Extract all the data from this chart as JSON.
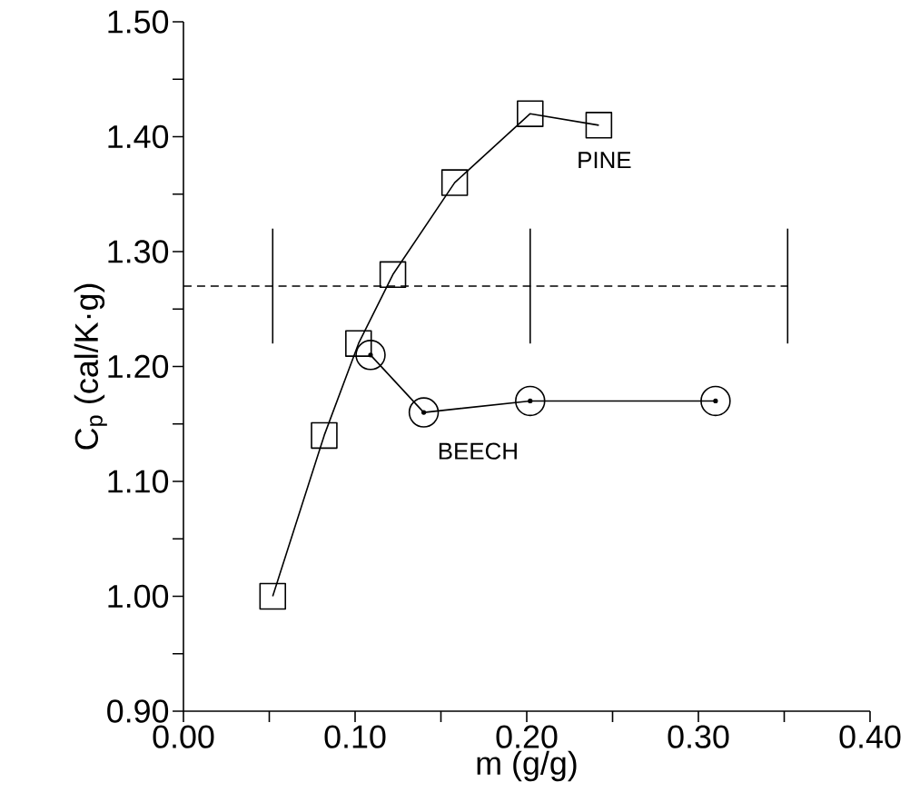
{
  "chart_data": {
    "type": "line",
    "xlabel": "m (g/g)",
    "ylabel": "C$_{p}$ (cal/K·g)",
    "xlim": [
      0,
      0.4
    ],
    "ylim": [
      0.9,
      1.5
    ],
    "xticks": [
      {
        "value": 0,
        "label": "0.00"
      },
      {
        "value": 0.05,
        "label": null
      },
      {
        "value": 0.1,
        "label": "0.10"
      },
      {
        "value": 0.15,
        "label": null
      },
      {
        "value": 0.2,
        "label": "0.20"
      },
      {
        "value": 0.25,
        "label": null
      },
      {
        "value": 0.3,
        "label": "0.30"
      },
      {
        "value": 0.35,
        "label": null
      },
      {
        "value": 0.4,
        "label": "0.40"
      }
    ],
    "yticks": [
      {
        "value": 0.9,
        "label": "0.90"
      },
      {
        "value": 0.95,
        "label": null
      },
      {
        "value": 1.0,
        "label": "1.00"
      },
      {
        "value": 1.05,
        "label": null
      },
      {
        "value": 1.1,
        "label": "1.10"
      },
      {
        "value": 1.15,
        "label": null
      },
      {
        "value": 1.2,
        "label": "1.20"
      },
      {
        "value": 1.25,
        "label": null
      },
      {
        "value": 1.3,
        "label": "1.30"
      },
      {
        "value": 1.35,
        "label": null
      },
      {
        "value": 1.4,
        "label": "1.40"
      },
      {
        "value": 1.45,
        "label": null
      },
      {
        "value": 1.5,
        "label": "1.50"
      }
    ],
    "grid": false,
    "series": [
      {
        "name": "PINE",
        "color": "#000000",
        "marker": "square",
        "line_style": "solid",
        "x": [
          0.052,
          0.082,
          0.102,
          0.122,
          0.158,
          0.202,
          0.242
        ],
        "values": [
          1.0,
          1.14,
          1.22,
          1.28,
          1.36,
          1.42,
          1.41
        ]
      },
      {
        "name": "BEECH",
        "color": "#000000",
        "marker": "circle",
        "line_style": "solid",
        "x": [
          0.109,
          0.14,
          0.202,
          0.31
        ],
        "values": [
          1.21,
          1.16,
          1.17,
          1.17
        ]
      },
      {
        "color": "#000000",
        "marker": "none",
        "line_style": "dashed",
        "x": [
          0,
          0.052,
          0.202,
          0.352
        ],
        "values": [
          1.27,
          1.27,
          1.27,
          1.27
        ],
        "errors": [
          null,
          0.05,
          0.05,
          0.05
        ]
      }
    ]
  }
}
